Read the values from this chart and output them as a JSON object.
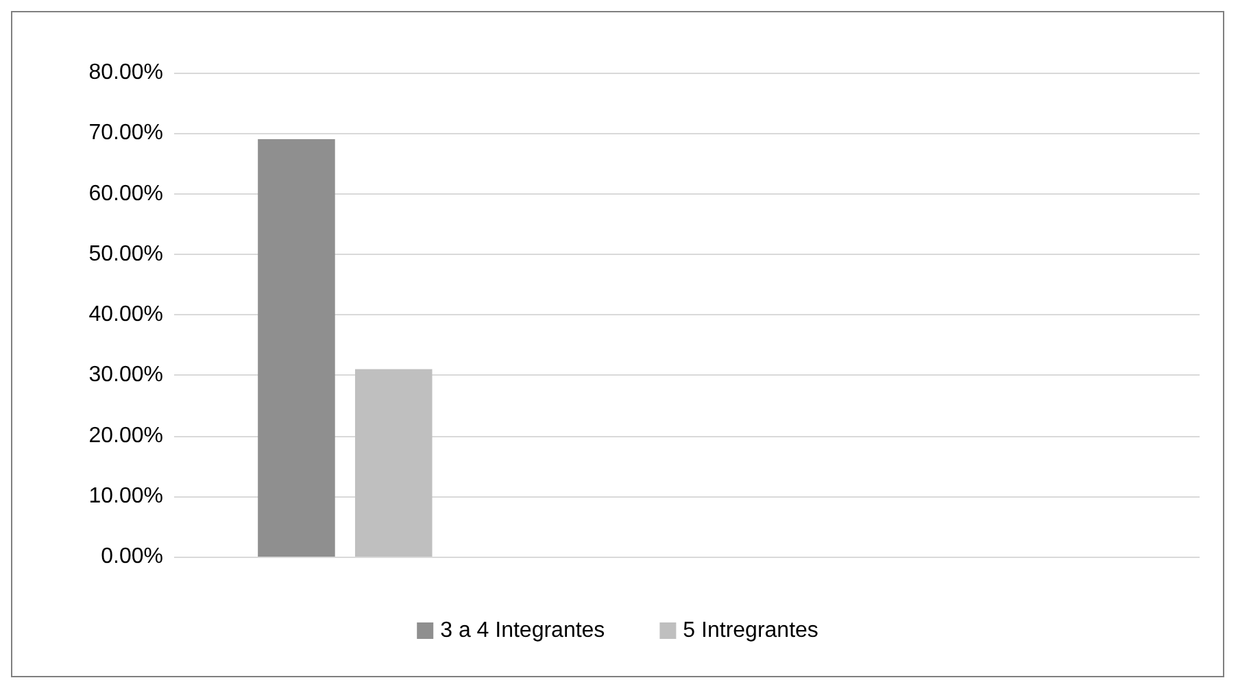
{
  "chart_data": {
    "type": "bar",
    "categories": [
      null,
      null,
      null
    ],
    "series": [
      {
        "name": "3 a 4 Integrantes",
        "color": "#8f8f8f",
        "values": [
          69,
          null,
          null
        ]
      },
      {
        "name": "5 Intregrantes",
        "color": "#bfbfbf",
        "values": [
          31,
          null,
          null
        ]
      }
    ],
    "ylim": [
      0,
      80
    ],
    "yticks": [
      {
        "value": 0,
        "label": "0.00%"
      },
      {
        "value": 10,
        "label": "10.00%"
      },
      {
        "value": 20,
        "label": "20.00%"
      },
      {
        "value": 30,
        "label": "30.00%"
      },
      {
        "value": 40,
        "label": "40.00%"
      },
      {
        "value": 50,
        "label": "50.00%"
      },
      {
        "value": 60,
        "label": "60.00%"
      },
      {
        "value": 70,
        "label": "70.00%"
      },
      {
        "value": 80,
        "label": "80.00%"
      }
    ],
    "grid": "y",
    "legend": "bottom"
  }
}
